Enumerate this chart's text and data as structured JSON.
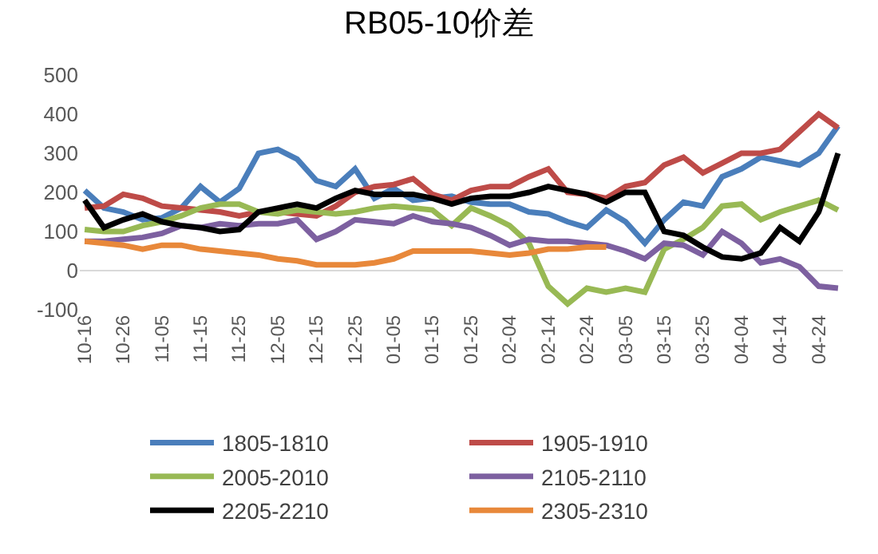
{
  "chart_data": {
    "type": "line",
    "title": "RB05-10价差",
    "categories": [
      "10-16",
      null,
      "10-26",
      null,
      "11-05",
      null,
      "11-15",
      null,
      "11-25",
      null,
      "12-05",
      null,
      "12-15",
      null,
      "12-25",
      null,
      "01-05",
      null,
      "01-15",
      null,
      "01-25",
      null,
      "02-04",
      null,
      "02-14",
      null,
      "02-24",
      null,
      "03-05",
      null,
      "03-15",
      null,
      "03-25",
      null,
      "04-04",
      null,
      "04-14",
      null,
      "04-24",
      null
    ],
    "series": [
      {
        "name": "1805-1810",
        "color": "#4a7ebb",
        "values": [
          205,
          160,
          150,
          130,
          135,
          160,
          215,
          175,
          210,
          300,
          310,
          285,
          230,
          215,
          260,
          185,
          210,
          180,
          185,
          190,
          175,
          170,
          170,
          150,
          145,
          125,
          110,
          155,
          125,
          70,
          130,
          175,
          165,
          240,
          260,
          290,
          280,
          270,
          300,
          370
        ]
      },
      {
        "name": "1905-1910",
        "color": "#be4b48",
        "values": [
          160,
          165,
          195,
          185,
          165,
          160,
          155,
          150,
          140,
          150,
          150,
          145,
          140,
          165,
          200,
          215,
          220,
          235,
          195,
          180,
          205,
          215,
          215,
          240,
          260,
          200,
          195,
          185,
          215,
          225,
          270,
          290,
          250,
          275,
          300,
          300,
          310,
          355,
          400,
          365
        ]
      },
      {
        "name": "2005-2010",
        "color": "#98b954",
        "values": [
          105,
          100,
          100,
          115,
          125,
          140,
          160,
          170,
          170,
          150,
          145,
          155,
          150,
          145,
          150,
          160,
          165,
          160,
          155,
          115,
          160,
          140,
          115,
          70,
          -40,
          -85,
          -45,
          -55,
          -45,
          -55,
          55,
          80,
          110,
          165,
          170,
          130,
          150,
          165,
          180,
          155
        ]
      },
      {
        "name": "2105-2110",
        "color": "#7d60a0",
        "values": [
          75,
          75,
          80,
          85,
          95,
          115,
          110,
          120,
          115,
          120,
          120,
          130,
          80,
          100,
          130,
          125,
          120,
          140,
          125,
          120,
          110,
          90,
          65,
          80,
          75,
          75,
          70,
          65,
          50,
          30,
          70,
          65,
          40,
          100,
          70,
          20,
          30,
          10,
          -40,
          -45
        ]
      },
      {
        "name": "2205-2210",
        "color": "#000000",
        "values": [
          180,
          110,
          130,
          145,
          125,
          115,
          110,
          100,
          105,
          150,
          160,
          170,
          160,
          185,
          205,
          195,
          195,
          195,
          185,
          170,
          185,
          190,
          190,
          200,
          215,
          205,
          195,
          175,
          200,
          200,
          100,
          90,
          60,
          35,
          30,
          45,
          110,
          75,
          150,
          300
        ]
      },
      {
        "name": "2305-2310",
        "color": "#e8883a",
        "values": [
          75,
          70,
          65,
          55,
          65,
          65,
          55,
          50,
          45,
          40,
          30,
          25,
          15,
          15,
          15,
          20,
          30,
          50,
          50,
          50,
          50,
          45,
          40,
          45,
          55,
          55,
          60,
          60,
          null,
          null,
          null,
          null,
          null,
          null,
          null,
          null,
          null,
          null,
          null,
          null
        ]
      }
    ],
    "ylim": [
      -100,
      500
    ],
    "yticks": [
      -100,
      0,
      100,
      200,
      300,
      400,
      500
    ],
    "grid": false,
    "legend": "bottom",
    "marker": "none",
    "line_style": "solid"
  }
}
